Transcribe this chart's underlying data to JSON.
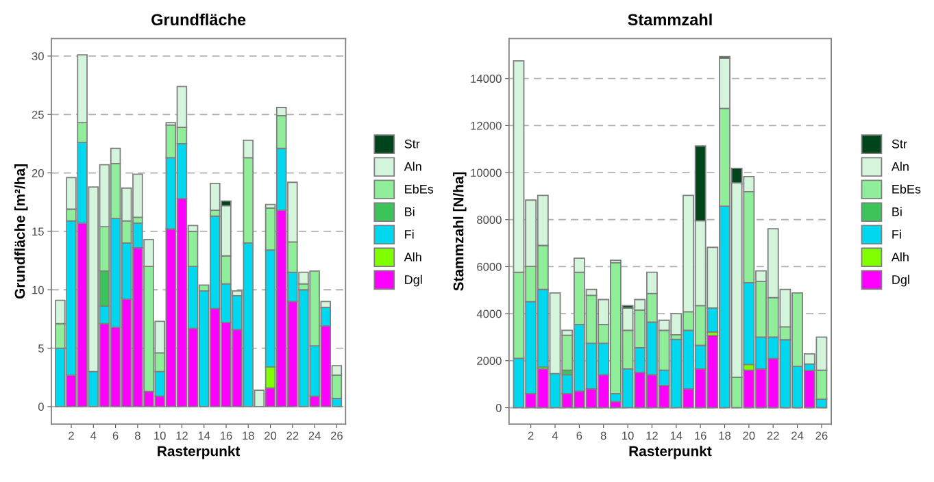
{
  "chart_data": [
    {
      "type": "bar",
      "stacked": true,
      "title": "Grundfläche",
      "xlabel": "Rasterpunkt",
      "ylabel": "Grundfläche [m²/ha]",
      "categories": [
        null,
        "2",
        null,
        "4",
        null,
        "6",
        null,
        "8",
        null,
        "10",
        null,
        "12",
        null,
        "14",
        null,
        "16",
        null,
        "18",
        null,
        "20",
        null,
        "22",
        null,
        "24",
        null,
        "26"
      ],
      "ylim": [
        -1.5,
        31.5
      ],
      "yticks": [
        0,
        5,
        10,
        15,
        20,
        25,
        30
      ],
      "grid": "y",
      "legend": "right",
      "series": [
        {
          "name": "Dgl",
          "color": "#ff00ff",
          "values": [
            0,
            2.7,
            15.7,
            0,
            7.1,
            6.8,
            9.2,
            13.6,
            1.3,
            0.9,
            15.2,
            17.8,
            6.7,
            0,
            8.4,
            7.2,
            6.6,
            0,
            0,
            1.6,
            16.8,
            9.0,
            0,
            0.9,
            6.9,
            0
          ]
        },
        {
          "name": "Alh",
          "color": "#7fff00",
          "values": [
            0,
            0,
            0,
            0,
            0,
            0,
            0,
            0,
            0,
            0,
            0,
            0,
            0,
            0,
            0,
            0,
            0,
            0,
            0,
            1.8,
            0,
            0,
            0,
            0,
            0,
            0
          ]
        },
        {
          "name": "Fi",
          "color": "#00d8f0",
          "values": [
            5.0,
            13.2,
            6.9,
            3.0,
            1.5,
            9.3,
            4.8,
            2.1,
            0,
            2.1,
            6.1,
            4.7,
            5.3,
            9.9,
            7.9,
            3.3,
            2.9,
            14.0,
            0,
            10.0,
            5.3,
            2.5,
            10.0,
            4.3,
            1.6,
            0.7
          ]
        },
        {
          "name": "Bi",
          "color": "#3cc35a",
          "values": [
            0,
            0,
            0,
            0,
            3.0,
            0,
            0,
            0,
            0,
            0,
            0,
            0,
            0,
            0,
            0,
            0,
            0,
            0,
            0,
            0,
            0,
            0,
            0,
            0,
            0,
            0
          ]
        },
        {
          "name": "EbEs",
          "color": "#90ee9a",
          "values": [
            2.1,
            1.0,
            1.7,
            0,
            3.8,
            4.7,
            1.9,
            0.5,
            10.7,
            1.6,
            2.8,
            1.4,
            3.0,
            0.5,
            0.5,
            2.4,
            0,
            7.3,
            0,
            3.6,
            2.8,
            2.6,
            0.5,
            6.4,
            0,
            2.0
          ]
        },
        {
          "name": "Aln",
          "color": "#d4f5dc",
          "values": [
            2.0,
            2.7,
            5.8,
            15.8,
            5.3,
            1.3,
            2.8,
            3.7,
            2.3,
            2.7,
            0.2,
            3.5,
            0.5,
            0,
            2.3,
            4.3,
            0.4,
            1.5,
            1.4,
            0.3,
            0.7,
            5.1,
            1.0,
            0,
            0.5,
            0.8
          ]
        },
        {
          "name": "Str",
          "color": "#00441b",
          "values": [
            0,
            0,
            0,
            0,
            0,
            0,
            0,
            0,
            0,
            0,
            0,
            0,
            0,
            0,
            0,
            0.4,
            0,
            0,
            0,
            0,
            0,
            0,
            0,
            0,
            0,
            0
          ]
        }
      ]
    },
    {
      "type": "bar",
      "stacked": true,
      "title": "Stammzahl",
      "xlabel": "Rasterpunkt",
      "ylabel": "Stammzahl [N/ha]",
      "categories": [
        null,
        "2",
        null,
        "4",
        null,
        "6",
        null,
        "8",
        null,
        "10",
        null,
        "12",
        null,
        "14",
        null,
        "16",
        null,
        "18",
        null,
        "20",
        null,
        "22",
        null,
        "24",
        null,
        "26"
      ],
      "ylim": [
        -700,
        15700
      ],
      "yticks": [
        0,
        2000,
        4000,
        6000,
        8000,
        10000,
        12000,
        14000
      ],
      "grid": "y",
      "legend": "right",
      "series": [
        {
          "name": "Dgl",
          "color": "#ff00ff",
          "values": [
            0,
            600,
            1650,
            0,
            600,
            700,
            800,
            1400,
            260,
            0,
            1500,
            1400,
            950,
            0,
            800,
            1650,
            3070,
            0,
            0,
            1600,
            1650,
            2090,
            0,
            0,
            1580,
            0
          ]
        },
        {
          "name": "Alh",
          "color": "#7fff00",
          "values": [
            0,
            0,
            80,
            0,
            0,
            0,
            0,
            0,
            0,
            0,
            0,
            0,
            0,
            0,
            0,
            0,
            150,
            0,
            0,
            240,
            0,
            0,
            0,
            0,
            0,
            0
          ]
        },
        {
          "name": "Fi",
          "color": "#00d8f0",
          "values": [
            2100,
            3910,
            3300,
            1450,
            800,
            2840,
            1940,
            1340,
            340,
            1650,
            1050,
            2240,
            650,
            2910,
            2490,
            1000,
            1020,
            8570,
            0,
            3480,
            1350,
            910,
            2890,
            1760,
            280,
            360
          ]
        },
        {
          "name": "Bi",
          "color": "#3cc35a",
          "values": [
            0,
            0,
            0,
            0,
            200,
            0,
            0,
            0,
            0,
            0,
            0,
            null,
            0,
            0,
            0,
            0,
            0,
            0,
            0,
            0,
            0,
            0,
            0,
            0,
            0,
            0
          ]
        },
        {
          "name": "EbEs",
          "color": "#90ee9a",
          "values": [
            3660,
            1500,
            1870,
            0,
            1480,
            2220,
            2040,
            800,
            5570,
            1640,
            1600,
            1220,
            1690,
            190,
            790,
            1690,
            0,
            4160,
            1290,
            3870,
            2370,
            1680,
            550,
            3120,
            0,
            1240
          ]
        },
        {
          "name": "Aln",
          "color": "#d4f5dc",
          "values": [
            8990,
            2820,
            2130,
            3430,
            210,
            600,
            250,
            1060,
            100,
            950,
            450,
            900,
            430,
            900,
            4950,
            3610,
            2580,
            2130,
            8270,
            640,
            450,
            2930,
            1590,
            0,
            430,
            1400
          ]
        },
        {
          "name": "Str",
          "color": "#00441b",
          "values": [
            0,
            0,
            0,
            0,
            0,
            0,
            0,
            0,
            0,
            100,
            0,
            0,
            0,
            0,
            0,
            3180,
            0,
            70,
            620,
            0,
            0,
            0,
            0,
            0,
            0,
            0
          ]
        }
      ]
    }
  ]
}
